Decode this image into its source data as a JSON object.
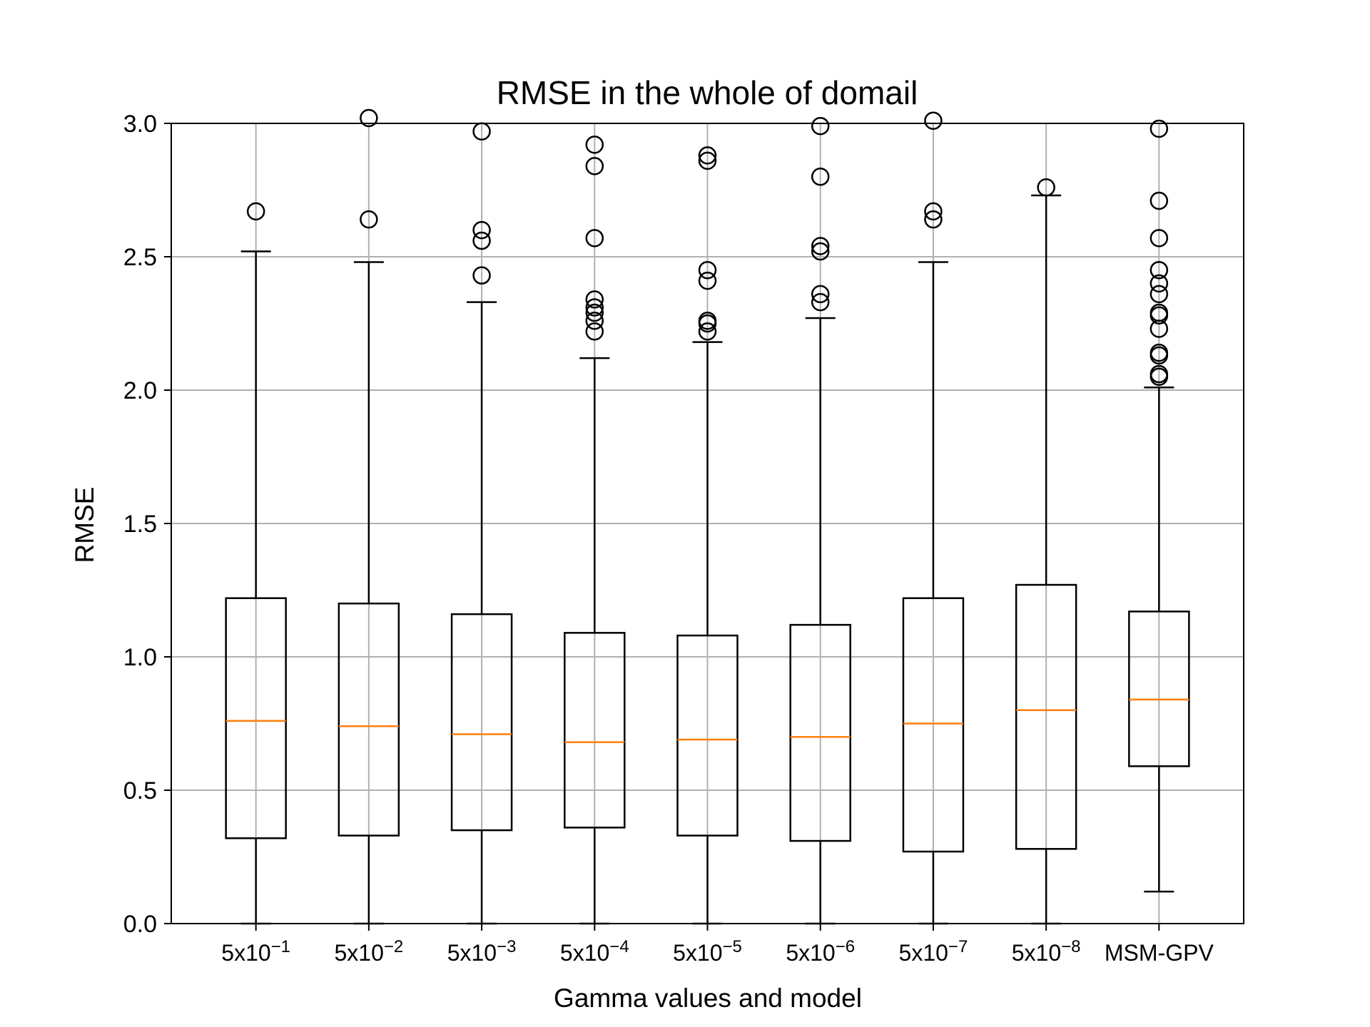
{
  "chart_data": {
    "type": "box",
    "title": "RMSE in the whole of domail",
    "xlabel": "Gamma values and model",
    "ylabel": "RMSE",
    "ylim": [
      0.0,
      3.0
    ],
    "yticks": [
      "0.0",
      "0.5",
      "1.0",
      "1.5",
      "2.0",
      "2.5",
      "3.0"
    ],
    "grid": true,
    "colors": {
      "box": "#000000",
      "median": "#ff7f0e",
      "grid": "#b0b0b0"
    },
    "series": [
      {
        "label": {
          "base": "5x10",
          "exp": "−1"
        },
        "whislo": 0.0,
        "q1": 0.32,
        "med": 0.76,
        "q3": 1.22,
        "whishi": 2.52,
        "fliers": [
          2.67
        ]
      },
      {
        "label": {
          "base": "5x10",
          "exp": "−2"
        },
        "whislo": 0.0,
        "q1": 0.33,
        "med": 0.74,
        "q3": 1.2,
        "whishi": 2.48,
        "fliers": [
          2.64,
          3.02
        ]
      },
      {
        "label": {
          "base": "5x10",
          "exp": "−3"
        },
        "whislo": 0.0,
        "q1": 0.35,
        "med": 0.71,
        "q3": 1.16,
        "whishi": 2.33,
        "fliers": [
          2.43,
          2.56,
          2.6,
          2.97
        ]
      },
      {
        "label": {
          "base": "5x10",
          "exp": "−4"
        },
        "whislo": 0.0,
        "q1": 0.36,
        "med": 0.68,
        "q3": 1.09,
        "whishi": 2.12,
        "fliers": [
          2.22,
          2.26,
          2.29,
          2.31,
          2.34,
          2.57,
          2.84,
          2.92
        ]
      },
      {
        "label": {
          "base": "5x10",
          "exp": "−5"
        },
        "whislo": 0.0,
        "q1": 0.33,
        "med": 0.69,
        "q3": 1.08,
        "whishi": 2.18,
        "fliers": [
          2.22,
          2.25,
          2.26,
          2.41,
          2.45,
          2.86,
          2.88
        ]
      },
      {
        "label": {
          "base": "5x10",
          "exp": "−6"
        },
        "whislo": 0.0,
        "q1": 0.31,
        "med": 0.7,
        "q3": 1.12,
        "whishi": 2.27,
        "fliers": [
          2.33,
          2.36,
          2.52,
          2.54,
          2.8,
          2.99
        ]
      },
      {
        "label": {
          "base": "5x10",
          "exp": "−7"
        },
        "whislo": 0.0,
        "q1": 0.27,
        "med": 0.75,
        "q3": 1.22,
        "whishi": 2.48,
        "fliers": [
          2.64,
          2.67,
          3.01
        ]
      },
      {
        "label": {
          "base": "5x10",
          "exp": "−8"
        },
        "whislo": 0.0,
        "q1": 0.28,
        "med": 0.8,
        "q3": 1.27,
        "whishi": 2.73,
        "fliers": [
          2.76
        ]
      },
      {
        "label": {
          "base": "MSM-GPV",
          "exp": ""
        },
        "whislo": 0.12,
        "q1": 0.59,
        "med": 0.84,
        "q3": 1.17,
        "whishi": 2.01,
        "fliers": [
          2.05,
          2.06,
          2.13,
          2.14,
          2.23,
          2.28,
          2.29,
          2.36,
          2.4,
          2.45,
          2.57,
          2.71,
          2.98
        ]
      }
    ]
  }
}
